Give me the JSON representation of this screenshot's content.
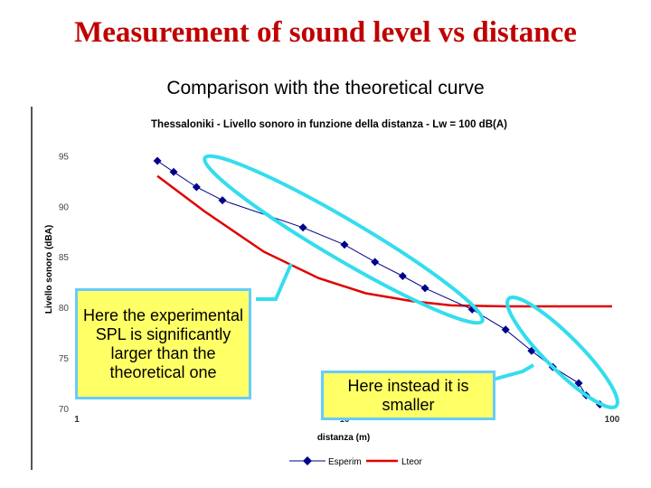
{
  "slide": {
    "title": "Measurement of sound level vs distance",
    "subtitle": "Comparison with the theoretical curve"
  },
  "callouts": {
    "left": "Here the experimental SPL is significantly larger than the theoretical one",
    "right": "Here instead it is smaller"
  },
  "colors": {
    "title": "#c00000",
    "experimental": "#00008b",
    "theoretical": "#e00000",
    "highlight": "#33ddee",
    "callout_fill": "#ffff66",
    "callout_border": "#66ccff"
  },
  "chart_data": {
    "type": "line",
    "title": "Thessaloniki - Livello sonoro in funzione della distanza - Lw = 100 dB(A)",
    "xlabel": "distanza (m)",
    "ylabel": "Livello sonoro (dBA)",
    "x_scale": "log",
    "xlim": [
      1,
      100
    ],
    "ylim": [
      70,
      97
    ],
    "x_ticks": [
      "1",
      "10",
      "100"
    ],
    "y_ticks": [
      95,
      90,
      85,
      80,
      75,
      70
    ],
    "legend_position": "bottom",
    "series": [
      {
        "name": "Esperim",
        "marker": "diamond",
        "points": [
          [
            2.0,
            94.5
          ],
          [
            2.3,
            93.4
          ],
          [
            2.8,
            91.9
          ],
          [
            3.5,
            90.6
          ],
          [
            7.0,
            87.9
          ],
          [
            10.0,
            86.2
          ],
          [
            13.0,
            84.5
          ],
          [
            16.5,
            83.1
          ],
          [
            20.0,
            81.9
          ],
          [
            30.0,
            79.8
          ],
          [
            40.0,
            77.8
          ],
          [
            50.0,
            75.7
          ],
          [
            60.0,
            74.1
          ],
          [
            75.0,
            72.5
          ],
          [
            80.0,
            71.3
          ],
          [
            90.0,
            70.4
          ]
        ]
      },
      {
        "name": "Lteor",
        "marker": "none",
        "points": [
          [
            2.0,
            93.0
          ],
          [
            3.0,
            89.5
          ],
          [
            5.0,
            85.5
          ],
          [
            8.0,
            82.9
          ],
          [
            12.0,
            81.4
          ],
          [
            18.0,
            80.6
          ],
          [
            25.0,
            80.2
          ],
          [
            40.0,
            80.1
          ],
          [
            100.0,
            80.1
          ]
        ]
      }
    ]
  }
}
